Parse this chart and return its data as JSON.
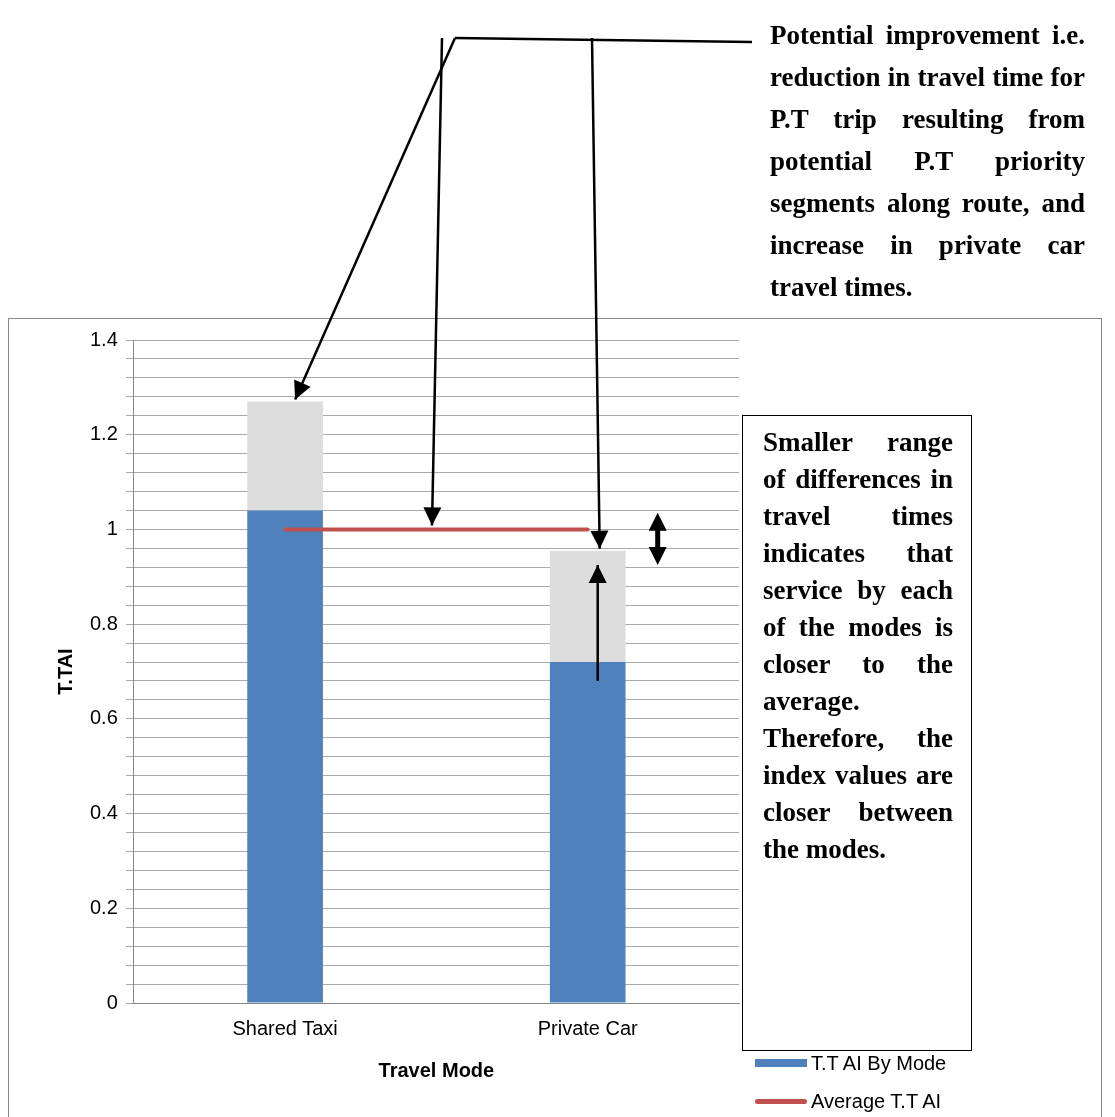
{
  "chart_data": {
    "type": "bar",
    "categories": [
      "Shared Taxi",
      "Private Car"
    ],
    "series": [
      {
        "name": "T.T AI By Mode",
        "color": "#4f81bd",
        "values": [
          1.04,
          0.72
        ]
      },
      {
        "color": "#dddddd",
        "values": [
          0.23,
          0.235
        ]
      },
      {
        "name": "Average T.T AI",
        "type": "line",
        "color": "#c0504d",
        "values": [
          1,
          1
        ]
      }
    ],
    "stacked": true,
    "xlabel": "Travel Mode",
    "ylabel": "T.TAI",
    "ylim": [
      0,
      1.4
    ],
    "yticks": [
      0,
      {
        "value": 0.04,
        "label": null
      },
      {
        "value": 0.08,
        "label": null
      },
      {
        "value": 0.12,
        "label": null
      },
      {
        "value": 0.16,
        "label": null
      },
      0.2,
      {
        "value": 0.24,
        "label": null
      },
      {
        "value": 0.28,
        "label": null
      },
      {
        "value": 0.32,
        "label": null
      },
      {
        "value": 0.36,
        "label": null
      },
      0.4,
      {
        "value": 0.44,
        "label": null
      },
      {
        "value": 0.48,
        "label": null
      },
      {
        "value": 0.52,
        "label": null
      },
      {
        "value": 0.56,
        "label": null
      },
      0.6,
      {
        "value": 0.64,
        "label": null
      },
      {
        "value": 0.68,
        "label": null
      },
      {
        "value": 0.72,
        "label": null
      },
      {
        "value": 0.76,
        "label": null
      },
      0.8,
      {
        "value": 0.84,
        "label": null
      },
      {
        "value": 0.88,
        "label": null
      },
      {
        "value": 0.92,
        "label": null
      },
      {
        "value": 0.96,
        "label": null
      },
      1,
      {
        "value": 1.04,
        "label": null
      },
      {
        "value": 1.08,
        "label": null
      },
      {
        "value": 1.12,
        "label": null
      },
      {
        "value": 1.16,
        "label": null
      },
      1.2,
      {
        "value": 1.24,
        "label": null
      },
      {
        "value": 1.28,
        "label": null
      },
      {
        "value": 1.32,
        "label": null
      },
      {
        "value": 1.36,
        "label": null
      },
      1.4
    ],
    "grid": "y",
    "legend": "bottom right",
    "marker": "none",
    "line_style": "solid",
    "annotations": [
      "Potential improvement i.e. reduction in travel time for P.T trip resulting from potential P.T priority segments along route, and increase in private car travel times.",
      "Smaller range of differences in travel times indicates that service by each of the modes is closer to the average. Therefore, the index values are closer between the modes."
    ]
  }
}
